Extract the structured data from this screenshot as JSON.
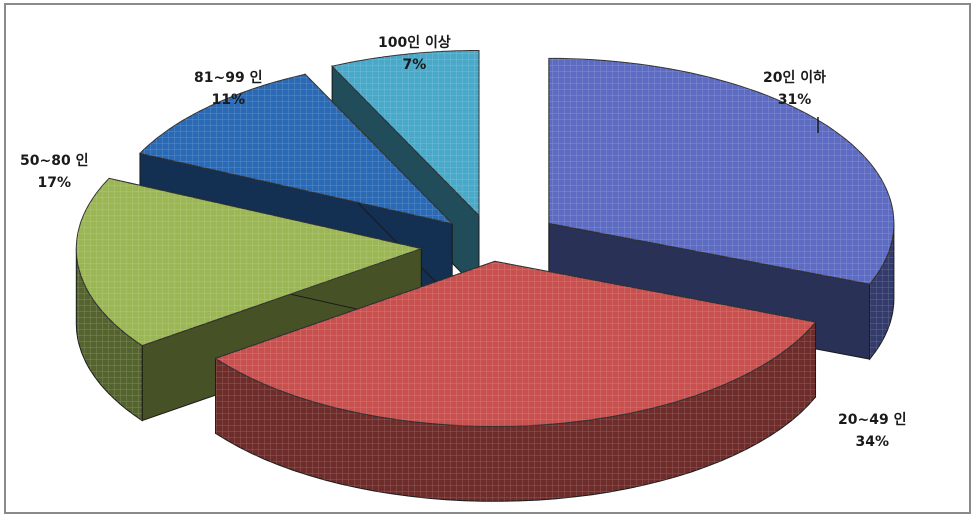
{
  "chart_data": {
    "type": "pie",
    "style": "3d-exploded",
    "title": "",
    "slices": [
      {
        "label": "20인 이하",
        "percent_label": "31%",
        "value": 31,
        "color": "#5d6cc2"
      },
      {
        "label": "20~49 인",
        "percent_label": "34%",
        "value": 34,
        "color": "#c8514f"
      },
      {
        "label": "50~80 인",
        "percent_label": "17%",
        "value": 17,
        "color": "#9bb654"
      },
      {
        "label": "81~99 인",
        "percent_label": "11%",
        "value": 11,
        "color": "#2a69b4"
      },
      {
        "label": "100인 이상",
        "percent_label": "7%",
        "value": 7,
        "color": "#4aa8c8"
      }
    ]
  }
}
